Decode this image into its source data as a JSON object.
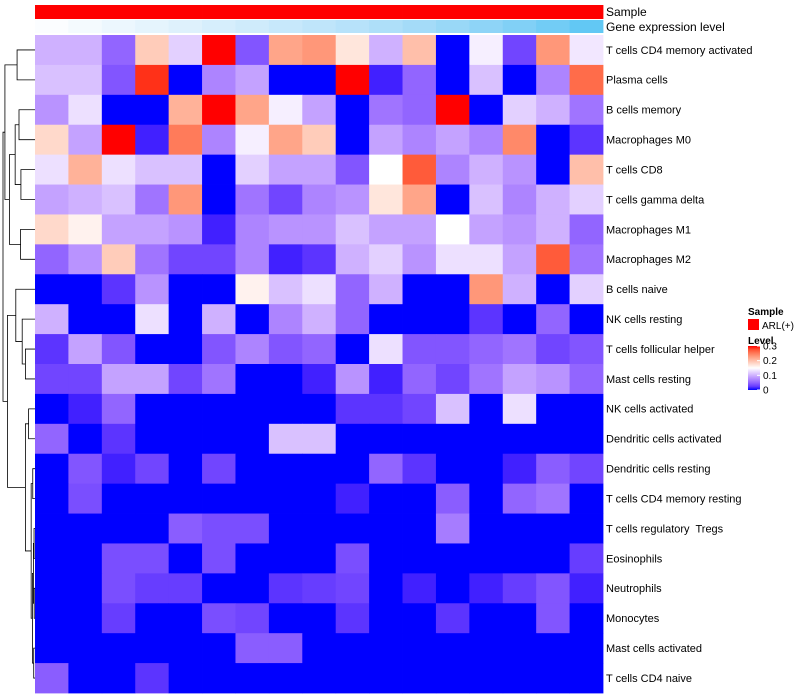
{
  "chart_data": {
    "type": "heatmap",
    "title": "",
    "row_labels": [
      "T cells CD4 memory activated",
      "Plasma cells",
      "B cells memory",
      "Macrophages M0",
      "T cells CD8",
      "T cells gamma delta",
      "Macrophages M1",
      "Macrophages M2",
      "B cells naive",
      "NK cells resting",
      "T cells follicular helper",
      "Mast cells resting",
      "NK cells activated",
      "Dendritic cells activated",
      "Dendritic cells resting",
      "T cells CD4 memory resting",
      "T cells regulatory  Tregs",
      "Eosinophils",
      "Neutrophils",
      "Monocytes",
      "Mast cells activated",
      "T cells CD4 naive"
    ],
    "column_count": 17,
    "value_range": [
      0,
      0.3
    ],
    "values": [
      [
        0.1,
        0.1,
        0.05,
        0.19,
        0.12,
        0.3,
        0.04,
        0.22,
        0.23,
        0.17,
        0.1,
        0.2,
        0.0,
        0.14,
        0.03,
        0.23,
        0.135
      ],
      [
        0.11,
        0.11,
        0.04,
        0.29,
        0.0,
        0.07,
        0.09,
        0.0,
        0.0,
        0.3,
        0.01,
        0.05,
        0.0,
        0.11,
        0.0,
        0.07,
        0.26
      ],
      [
        0.08,
        0.13,
        0.0,
        0.0,
        0.21,
        0.3,
        0.22,
        0.14,
        0.09,
        0.0,
        0.06,
        0.05,
        0.3,
        0.0,
        0.12,
        0.1,
        0.06
      ],
      [
        0.18,
        0.09,
        0.3,
        0.01,
        0.25,
        0.07,
        0.14,
        0.22,
        0.19,
        0.0,
        0.09,
        0.07,
        0.09,
        0.07,
        0.24,
        0.0,
        0.02
      ],
      [
        0.13,
        0.21,
        0.13,
        0.11,
        0.11,
        0.0,
        0.12,
        0.09,
        0.09,
        0.04,
        0.15,
        0.27,
        0.07,
        0.1,
        0.08,
        0.0,
        0.2
      ],
      [
        0.09,
        0.1,
        0.11,
        0.06,
        0.23,
        0.0,
        0.06,
        0.03,
        0.07,
        0.08,
        0.17,
        0.22,
        0.0,
        0.11,
        0.07,
        0.1,
        0.12
      ],
      [
        0.18,
        0.16,
        0.09,
        0.09,
        0.08,
        0.01,
        0.07,
        0.08,
        0.08,
        0.11,
        0.09,
        0.09,
        0.15,
        0.09,
        0.08,
        0.1,
        0.05
      ],
      [
        0.05,
        0.08,
        0.19,
        0.06,
        0.03,
        0.03,
        0.07,
        0.01,
        0.02,
        0.1,
        0.12,
        0.08,
        0.13,
        0.13,
        0.09,
        0.27,
        0.06
      ],
      [
        0.0,
        0.0,
        0.02,
        0.08,
        0.0,
        0.0,
        0.16,
        0.11,
        0.13,
        0.05,
        0.1,
        0.0,
        0.0,
        0.23,
        0.1,
        0.0,
        0.12
      ],
      [
        0.1,
        0.0,
        0.0,
        0.13,
        0.0,
        0.1,
        0.0,
        0.07,
        0.1,
        0.05,
        0.0,
        0.0,
        0.0,
        0.02,
        0.0,
        0.05,
        0.0
      ],
      [
        0.02,
        0.09,
        0.04,
        0.0,
        0.0,
        0.04,
        0.07,
        0.04,
        0.05,
        0.0,
        0.13,
        0.04,
        0.04,
        0.05,
        0.06,
        0.03,
        0.04
      ],
      [
        0.03,
        0.03,
        0.09,
        0.09,
        0.03,
        0.06,
        0.0,
        0.0,
        0.01,
        0.08,
        0.01,
        0.05,
        0.03,
        0.06,
        0.09,
        0.08,
        0.05
      ],
      [
        0.0,
        0.01,
        0.05,
        0.0,
        0.0,
        0.0,
        0.0,
        0.0,
        0.0,
        0.02,
        0.02,
        0.03,
        0.11,
        0.0,
        0.13,
        0.0,
        0.0
      ],
      [
        0.05,
        0.0,
        0.02,
        0.0,
        0.0,
        0.0,
        0.0,
        0.11,
        0.11,
        0.0,
        0.0,
        0.0,
        0.0,
        0.0,
        0.0,
        0.0,
        0.0
      ],
      [
        0.0,
        0.04,
        0.01,
        0.03,
        0.0,
        0.03,
        0.0,
        0.0,
        0.0,
        0.0,
        0.05,
        0.02,
        0.0,
        0.0,
        0.01,
        0.045,
        0.03
      ],
      [
        0.0,
        0.035,
        0.0,
        0.0,
        0.0,
        0.0,
        0.0,
        0.0,
        0.0,
        0.01,
        0.0,
        0.0,
        0.045,
        0.0,
        0.05,
        0.06,
        0.0
      ],
      [
        0.0,
        0.0,
        0.0,
        0.0,
        0.045,
        0.035,
        0.035,
        0.0,
        0.0,
        0.0,
        0.0,
        0.0,
        0.065,
        0.0,
        0.0,
        0.0,
        0.0
      ],
      [
        0.0,
        0.0,
        0.035,
        0.035,
        0.0,
        0.035,
        0.0,
        0.0,
        0.0,
        0.035,
        0.0,
        0.0,
        0.0,
        0.0,
        0.0,
        0.0,
        0.025
      ],
      [
        0.0,
        0.0,
        0.035,
        0.025,
        0.025,
        0.0,
        0.0,
        0.02,
        0.025,
        0.03,
        0.0,
        0.01,
        0.0,
        0.01,
        0.025,
        0.04,
        0.01
      ],
      [
        0.0,
        0.0,
        0.025,
        0.0,
        0.0,
        0.035,
        0.03,
        0.0,
        0.0,
        0.02,
        0.0,
        0.0,
        0.02,
        0.0,
        0.0,
        0.04,
        0.0
      ],
      [
        0.0,
        0.0,
        0.0,
        0.0,
        0.0,
        0.0,
        0.045,
        0.045,
        0.0,
        0.0,
        0.0,
        0.0,
        0.0,
        0.0,
        0.0,
        0.0,
        0.0
      ],
      [
        0.045,
        0.0,
        0.0,
        0.02,
        0.0,
        0.0,
        0.0,
        0.0,
        0.0,
        0.0,
        0.0,
        0.0,
        0.0,
        0.0,
        0.0,
        0.0,
        0.0
      ]
    ],
    "color_scale": {
      "low": "#0000FF",
      "mid": "#FFFFFF",
      "high": "#FF0000",
      "breaks": [
        0,
        0.15,
        0.3
      ]
    },
    "annotations": [
      {
        "name": "Sample",
        "kind": "categorical",
        "values": [
          "ARL(+)",
          "ARL(+)",
          "ARL(+)",
          "ARL(+)",
          "ARL(+)",
          "ARL(+)",
          "ARL(+)",
          "ARL(+)",
          "ARL(+)",
          "ARL(+)",
          "ARL(+)",
          "ARL(+)",
          "ARL(+)",
          "ARL(+)",
          "ARL(+)",
          "ARL(+)",
          "ARL(+)"
        ],
        "colors": {
          "ARL(+)": "#FF0000"
        }
      },
      {
        "name": "Gene expression level",
        "kind": "continuous",
        "values": [
          0.03,
          0.08,
          0.13,
          0.18,
          0.23,
          0.28,
          0.33,
          0.38,
          0.43,
          0.48,
          0.54,
          0.6,
          0.66,
          0.72,
          0.79,
          0.86,
          0.93
        ],
        "range": [
          0,
          1
        ],
        "color_low": "#FFFFFF",
        "color_high": "#4FC4F3"
      }
    ],
    "legend": {
      "sample_title": "Sample",
      "sample_levels": [
        "ARL(+)"
      ],
      "level_title": "Level",
      "level_ticks": [
        0.3,
        0.2,
        0.1,
        0
      ]
    },
    "dendrogram": {
      "max_height": 1.0,
      "tree": {
        "height": 1.0,
        "c": [
          {
            "height": 0.94,
            "c": [
              {
                "height": 0.56,
                "c": [
                  0,
                  1
                ]
              },
              {
                "height": 0.8,
                "c": [
                  {
                    "height": 0.62,
                    "c": [
                      {
                        "height": 0.5,
                        "c": [
                          2,
                          3
                        ]
                      },
                      {
                        "height": 0.44,
                        "c": [
                          4,
                          5
                        ]
                      }
                    ]
                  },
                  {
                    "height": 0.45,
                    "c": [
                      6,
                      7
                    ]
                  }
                ]
              }
            ]
          },
          {
            "height": 0.86,
            "c": [
              {
                "height": 0.6,
                "c": [
                  8,
                  {
                    "height": 0.4,
                    "c": [
                      9,
                      {
                        "height": 0.3,
                        "c": [
                          10,
                          11
                        ]
                      }
                    ]
                  }
                ]
              },
              {
                "height": 0.3,
                "c": [
                  {
                    "height": 0.2,
                    "c": [
                      12,
                      13
                    ]
                  },
                  {
                    "height": 0.12,
                    "c": [
                      {
                        "height": 0.07,
                        "c": [
                          14,
                          15
                        ]
                      },
                      {
                        "height": 0.08,
                        "c": [
                          {
                            "height": 0.05,
                            "c": [
                              {
                                "height": 0.03,
                                "c": [
                                  16,
                                  17
                                ]
                              },
                              {
                                "height": 0.025,
                                "c": [
                                  18,
                                  19
                                ]
                              }
                            ]
                          },
                          {
                            "height": 0.04,
                            "c": [
                              20,
                              21
                            ]
                          }
                        ]
                      }
                    ]
                  }
                ]
              }
            ]
          }
        ]
      }
    }
  }
}
